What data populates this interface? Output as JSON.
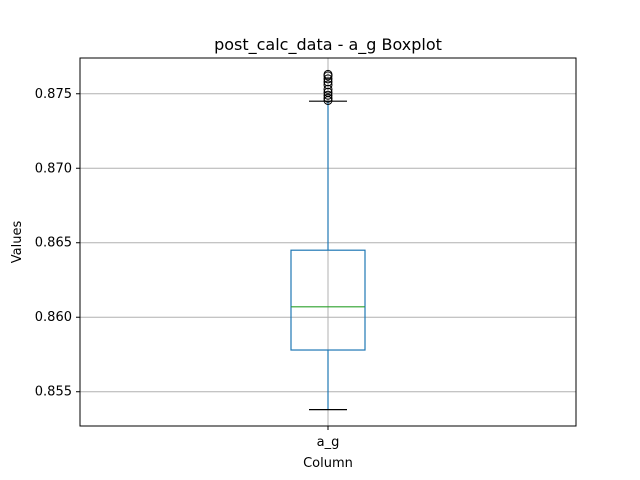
{
  "chart_data": {
    "type": "box",
    "title": "post_calc_data - a_g Boxplot",
    "xlabel": "Column",
    "ylabel": "Values",
    "categories": [
      "a_g"
    ],
    "ylim": [
      0.8527,
      0.8774
    ],
    "yticks": [
      0.855,
      0.86,
      0.865,
      0.87,
      0.875
    ],
    "ytick_labels": [
      "0.855",
      "0.860",
      "0.865",
      "0.870",
      "0.875"
    ],
    "grid": true,
    "boxes": [
      {
        "name": "a_g",
        "whisker_low": 0.8538,
        "q1": 0.8578,
        "median": 0.8607,
        "q3": 0.8645,
        "whisker_high": 0.8745,
        "outliers": [
          0.87455,
          0.8747,
          0.8749,
          0.8751,
          0.8753,
          0.8756,
          0.8758,
          0.876,
          0.8762,
          0.8763
        ]
      }
    ],
    "colors": {
      "box": "#1f77b4",
      "median": "#2ca02c",
      "grid": "#b0b0b0",
      "axes": "#000000"
    }
  }
}
